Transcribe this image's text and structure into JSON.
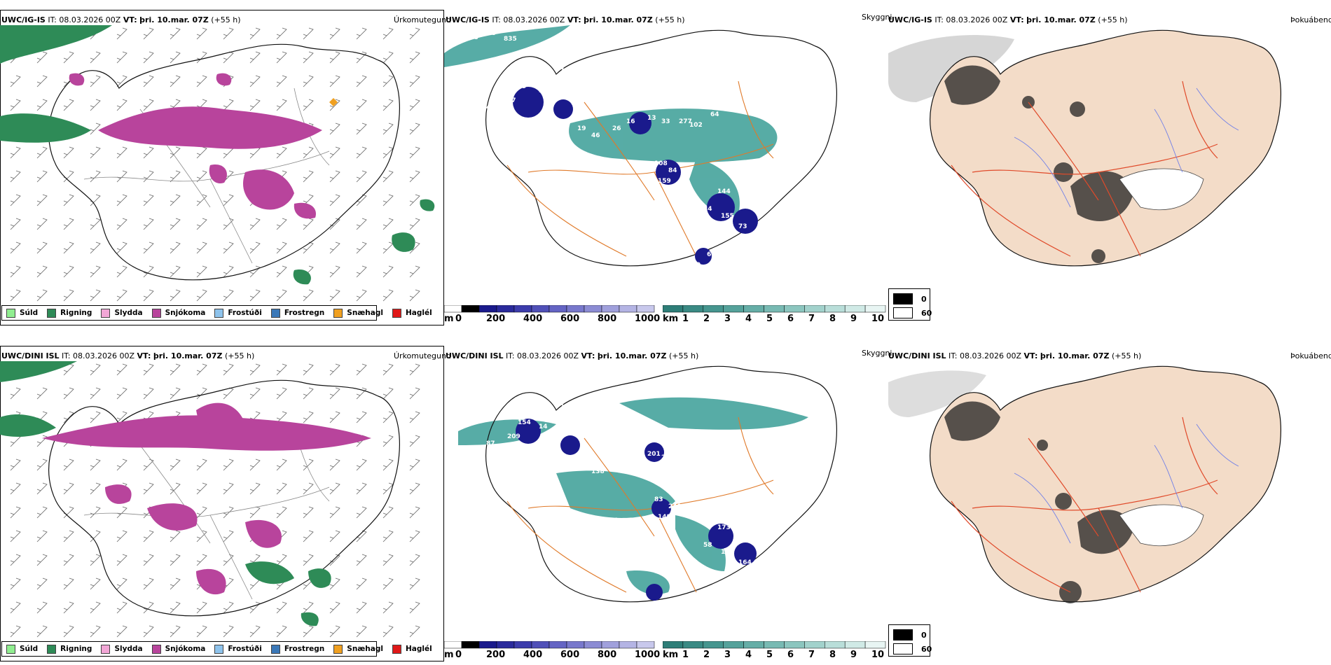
{
  "rows": [
    {
      "model": "UWC/IG-IS",
      "it_label": "IT:",
      "it_value": "08.03.2026 00Z",
      "vt_label": "VT:",
      "vt_value": "þri. 10.mar. 07Z",
      "lead": "(+55 h)",
      "spot_labels": [
        "438",
        "608",
        "835",
        "77",
        "89",
        "55",
        "57",
        "70",
        "17",
        "49",
        "19",
        "46",
        "26",
        "16",
        "13",
        "33",
        "277",
        "102",
        "64",
        "84",
        "108",
        "159",
        "144",
        "34",
        "155",
        "73",
        "6",
        "9",
        "18"
      ]
    },
    {
      "model": "UWC/DINI ISL",
      "it_label": "IT:",
      "it_value": "08.03.2026 00Z",
      "vt_label": "VT:",
      "vt_value": "þri. 10.mar. 07Z",
      "lead": "(+55 h)",
      "spot_labels": [
        "168",
        "128",
        "170",
        "20",
        "154",
        "14",
        "88",
        "299",
        "209",
        "87",
        "280",
        "138",
        "358",
        "428",
        "201",
        "244",
        "397",
        "490",
        "977",
        "240",
        "83",
        "148",
        "173",
        "58",
        "132",
        "164",
        "13",
        "56",
        "178",
        "112",
        "133",
        "100",
        "51"
      ]
    }
  ],
  "panels": {
    "precip_type": {
      "title": "Úrkomutegund",
      "legend": [
        {
          "label": "Súld",
          "color": "#90ee90"
        },
        {
          "label": "Rigning",
          "color": "#2e8b57"
        },
        {
          "label": "Slydda",
          "color": "#f2a6d6"
        },
        {
          "label": "Snjókoma",
          "color": "#b8449c"
        },
        {
          "label": "Frostúði",
          "color": "#8ec3ec"
        },
        {
          "label": "Frostregn",
          "color": "#3a78b8"
        },
        {
          "label": "Snæhagl",
          "color": "#f0a020"
        },
        {
          "label": "Haglél",
          "color": "#e01818"
        }
      ]
    },
    "visibility": {
      "title": "Skyggni",
      "cbar_m_unit": "m",
      "cbar_m_ticks": [
        "0",
        "200",
        "400",
        "600",
        "800",
        "1000"
      ],
      "cbar_km_unit": "km",
      "cbar_km_ticks": [
        "1",
        "2",
        "3",
        "4",
        "5",
        "6",
        "7",
        "8",
        "9",
        "10"
      ]
    },
    "cloud": {
      "title": "Þokuábendi",
      "legend": [
        "0",
        "60"
      ]
    }
  },
  "colors": {
    "snow": "#b8449c",
    "rain": "#2e8b57",
    "teal": "#2f9c94",
    "dark_blue": "#1a1a8c",
    "road": "#e07a2a",
    "land_tan": "#f3dcc8",
    "road_red": "#e04a2a",
    "river": "#6f7fe8"
  }
}
